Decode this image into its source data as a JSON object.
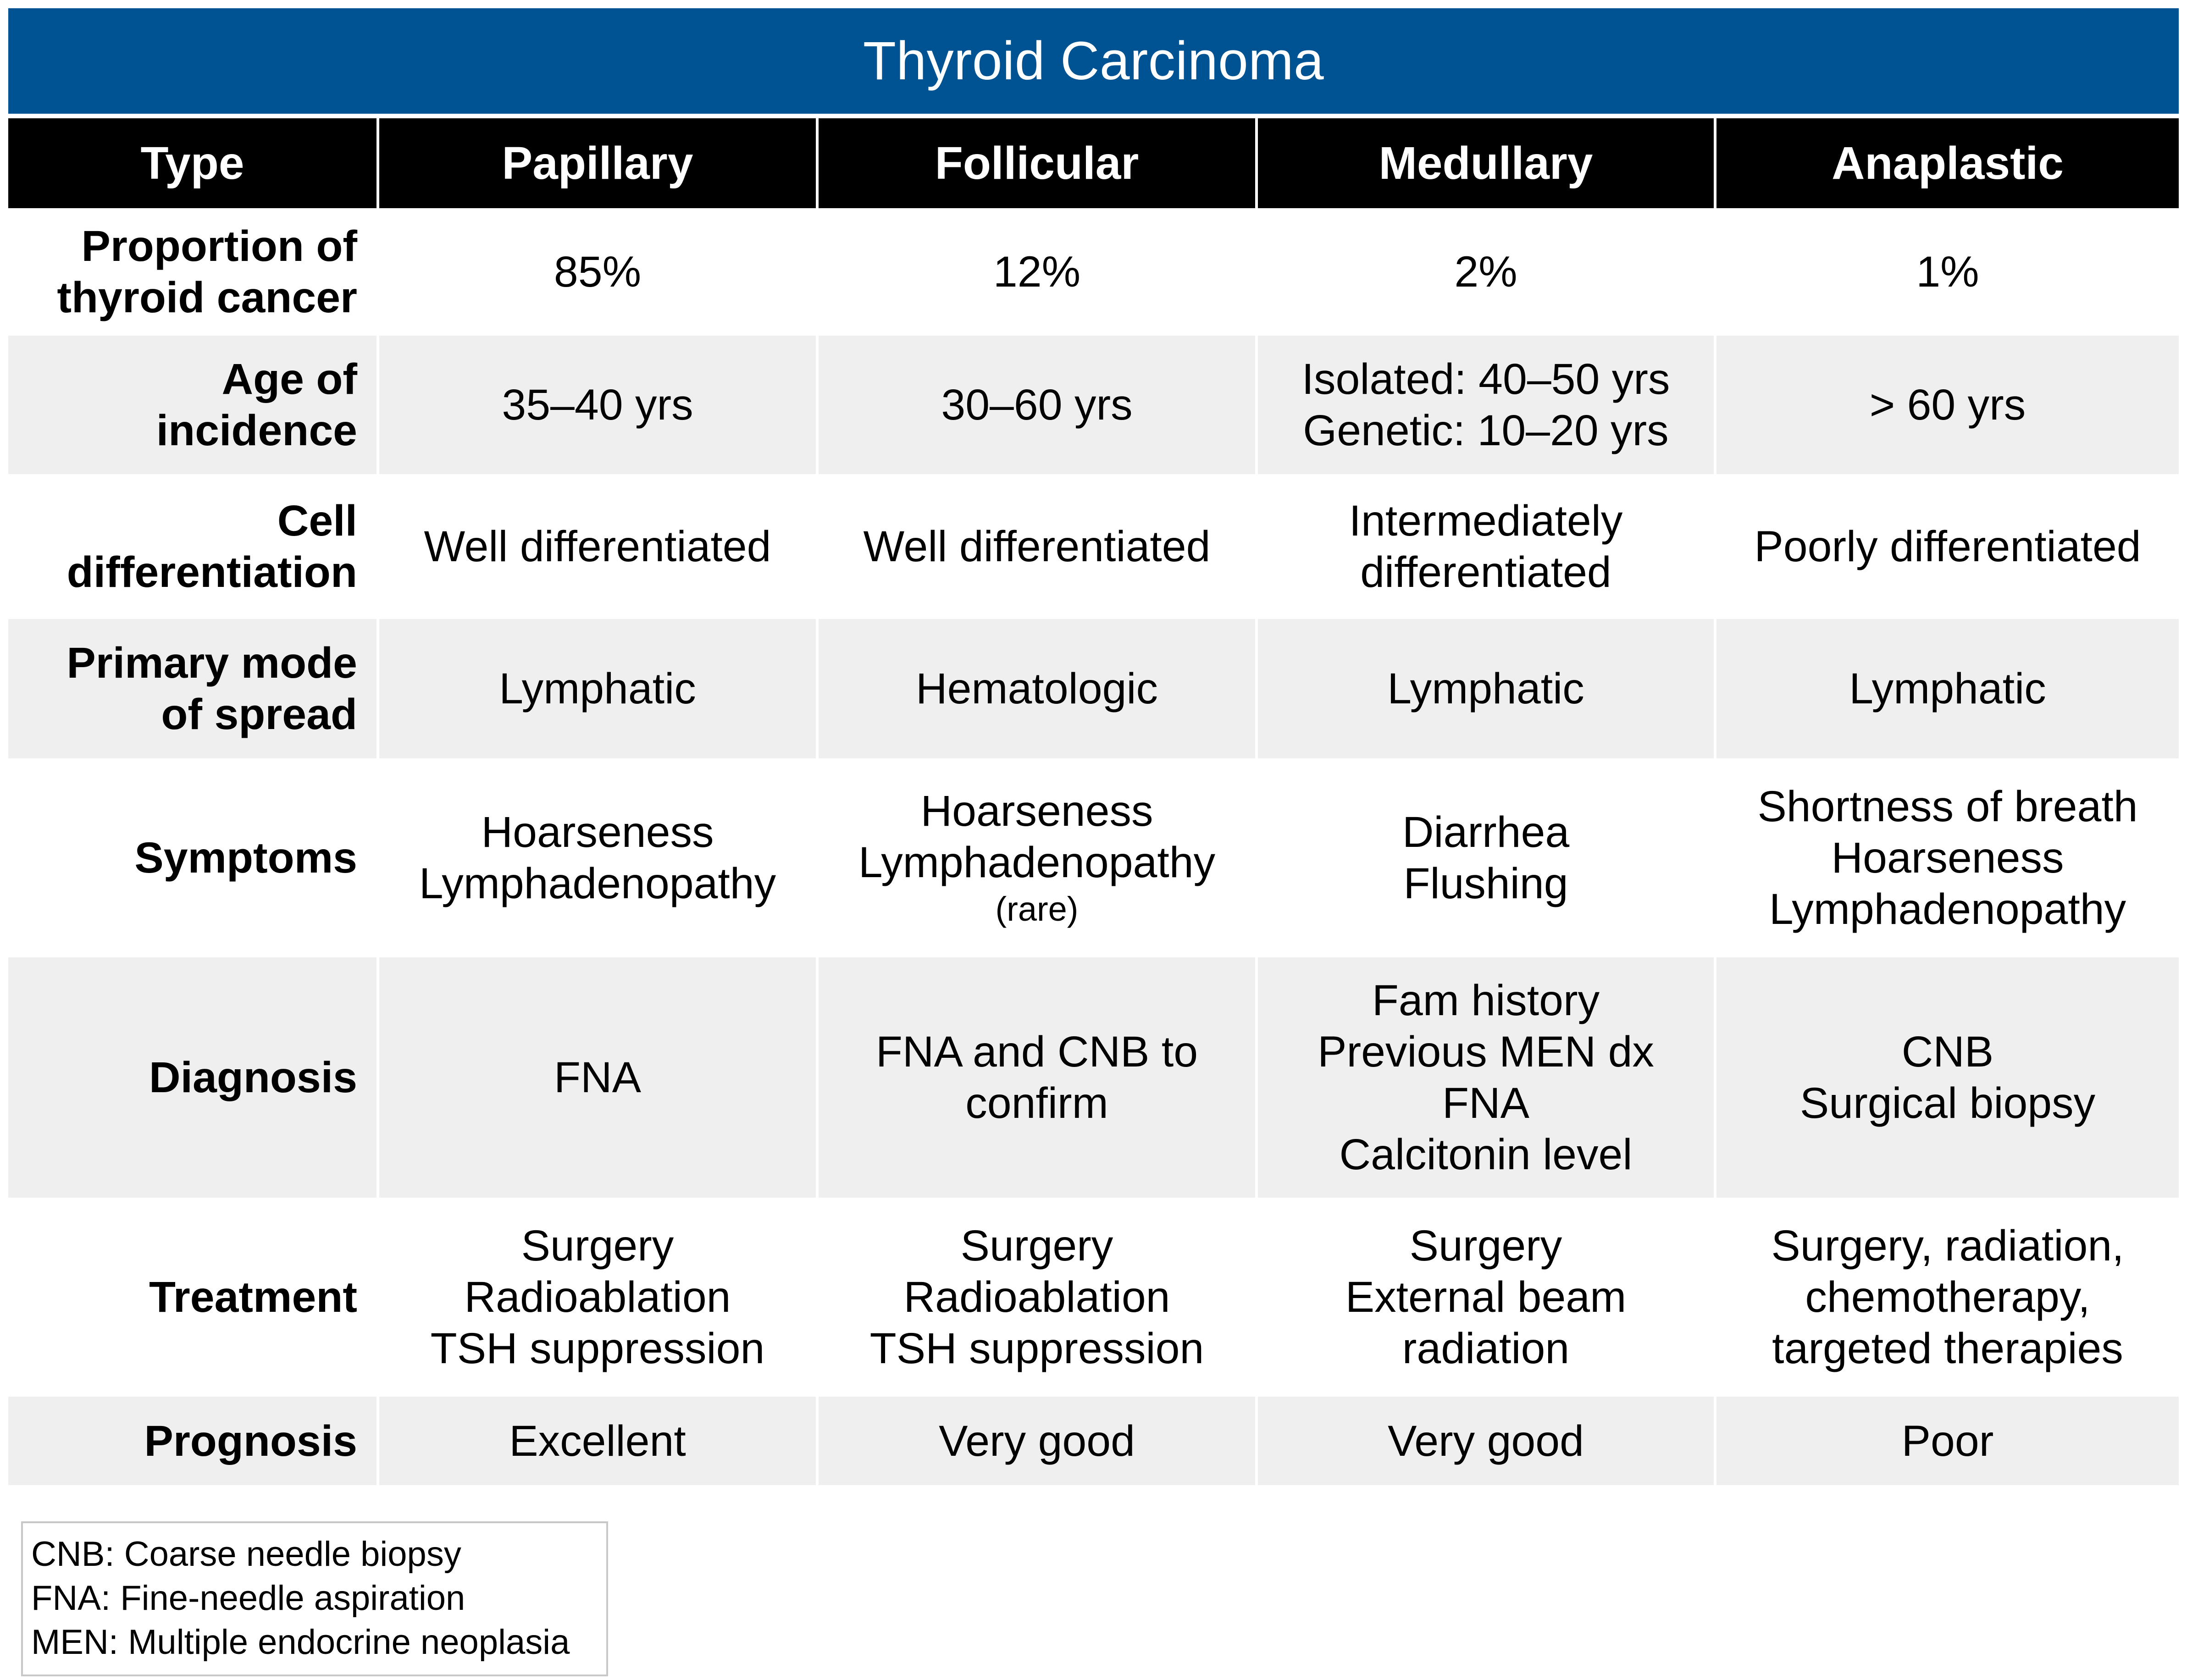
{
  "title": "Thyroid Carcinoma",
  "colors": {
    "title_bar": "#005393",
    "header_bg": "#000000",
    "shaded_row": "#efefef"
  },
  "header": {
    "type_label": "Type",
    "columns": [
      "Papillary",
      "Follicular",
      "Medullary",
      "Anaplastic"
    ]
  },
  "rows": [
    {
      "label": [
        "Proportion of",
        "thyroid cancer"
      ],
      "cells": [
        [
          "85%"
        ],
        [
          "12%"
        ],
        [
          "2%"
        ],
        [
          "1%"
        ]
      ]
    },
    {
      "label": [
        "Age of",
        "incidence"
      ],
      "cells": [
        [
          "35–40 yrs"
        ],
        [
          "30–60 yrs"
        ],
        [
          "Isolated: 40–50 yrs",
          "Genetic: 10–20 yrs"
        ],
        [
          "> 60 yrs"
        ]
      ]
    },
    {
      "label": [
        "Cell",
        "differentiation"
      ],
      "cells": [
        [
          "Well differentiated"
        ],
        [
          "Well differentiated"
        ],
        [
          "Intermediately",
          "differentiated"
        ],
        [
          "Poorly differentiated"
        ]
      ]
    },
    {
      "label": [
        "Primary mode",
        "of spread"
      ],
      "cells": [
        [
          "Lymphatic"
        ],
        [
          "Hematologic"
        ],
        [
          "Lymphatic"
        ],
        [
          "Lymphatic"
        ]
      ]
    },
    {
      "label": [
        "Symptoms"
      ],
      "cells": [
        [
          "Hoarseness",
          "Lymphadenopathy"
        ],
        [
          "Hoarseness",
          "Lymphadenopathy"
        ],
        [
          "Diarrhea",
          "Flushing"
        ],
        [
          "Shortness of breath",
          "Hoarseness",
          "Lymphadenopathy"
        ]
      ],
      "follicular_note": "(rare)"
    },
    {
      "label": [
        "Diagnosis"
      ],
      "cells": [
        [
          "FNA"
        ],
        [
          "FNA and CNB to",
          "confirm"
        ],
        [
          "Fam history",
          "Previous MEN dx",
          "FNA",
          "Calcitonin level"
        ],
        [
          "CNB",
          "Surgical biopsy"
        ]
      ]
    },
    {
      "label": [
        "Treatment"
      ],
      "cells": [
        [
          "Surgery",
          "Radioablation",
          "TSH suppression"
        ],
        [
          "Surgery",
          "Radioablation",
          "TSH suppression"
        ],
        [
          "Surgery",
          "External beam",
          "radiation"
        ],
        [
          "Surgery, radiation,",
          "chemotherapy,",
          "targeted therapies"
        ]
      ]
    },
    {
      "label": [
        "Prognosis"
      ],
      "cells": [
        [
          "Excellent"
        ],
        [
          "Very good"
        ],
        [
          "Very good"
        ],
        [
          "Poor"
        ]
      ]
    }
  ],
  "legend": [
    "CNB: Coarse needle biopsy",
    "FNA: Fine-needle aspiration",
    "MEN: Multiple endocrine neoplasia"
  ]
}
